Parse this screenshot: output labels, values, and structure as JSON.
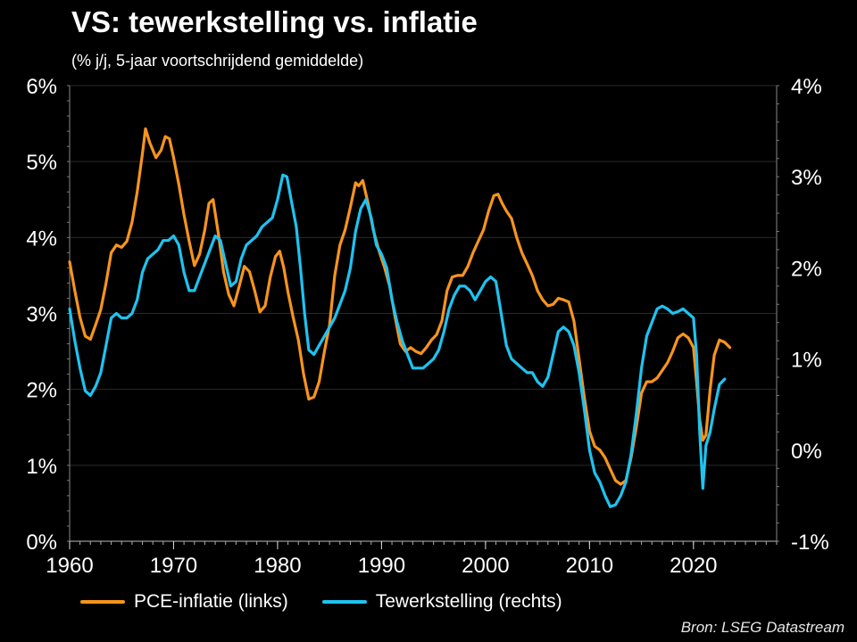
{
  "title": "VS: tewerkstelling vs. inflatie",
  "subtitle": "(% j/j, 5-jaar voortschrijdend gemiddelde)",
  "source": "Bron: LSEG Datastream",
  "chart_data": {
    "type": "line",
    "grid": "horizontal",
    "legend_placement": "bottom",
    "x_range": [
      1960,
      2028
    ],
    "x_ticks": [
      {
        "value": 1960,
        "label": "1960"
      },
      {
        "value": 1970,
        "label": "1970"
      },
      {
        "value": 1980,
        "label": "1980"
      },
      {
        "value": 1990,
        "label": "1990"
      },
      {
        "value": 2000,
        "label": "2000"
      },
      {
        "value": 2010,
        "label": "2010"
      },
      {
        "value": 2020,
        "label": "2020"
      }
    ],
    "y_left": {
      "range": [
        0,
        6
      ],
      "ticks": [
        {
          "value": 0,
          "label": "0%"
        },
        {
          "value": 1,
          "label": "1%"
        },
        {
          "value": 2,
          "label": "2%"
        },
        {
          "value": 3,
          "label": "3%"
        },
        {
          "value": 4,
          "label": "4%"
        },
        {
          "value": 5,
          "label": "5%"
        },
        {
          "value": 6,
          "label": "6%"
        }
      ]
    },
    "y_right": {
      "range": [
        -1,
        4
      ],
      "ticks": [
        {
          "value": -1,
          "label": "-1%"
        },
        {
          "value": 0,
          "label": "0%"
        },
        {
          "value": 1,
          "label": "1%"
        },
        {
          "value": 2,
          "label": "2%"
        },
        {
          "value": 3,
          "label": "3%"
        },
        {
          "value": 4,
          "label": "4%"
        }
      ]
    },
    "series": [
      {
        "name": "PCE-inflatie (links)",
        "axis": "left",
        "color": "#f7941d",
        "points": [
          [
            1960.0,
            3.68
          ],
          [
            1960.5,
            3.3
          ],
          [
            1961.0,
            2.95
          ],
          [
            1961.5,
            2.7
          ],
          [
            1962.0,
            2.66
          ],
          [
            1962.5,
            2.85
          ],
          [
            1963.0,
            3.05
          ],
          [
            1963.5,
            3.4
          ],
          [
            1964.0,
            3.8
          ],
          [
            1964.5,
            3.9
          ],
          [
            1965.0,
            3.87
          ],
          [
            1965.5,
            3.95
          ],
          [
            1966.0,
            4.2
          ],
          [
            1966.5,
            4.6
          ],
          [
            1967.0,
            5.1
          ],
          [
            1967.3,
            5.43
          ],
          [
            1967.7,
            5.25
          ],
          [
            1968.3,
            5.05
          ],
          [
            1968.8,
            5.15
          ],
          [
            1969.2,
            5.33
          ],
          [
            1969.6,
            5.3
          ],
          [
            1970.0,
            5.05
          ],
          [
            1970.5,
            4.7
          ],
          [
            1971.0,
            4.3
          ],
          [
            1971.5,
            3.95
          ],
          [
            1972.0,
            3.63
          ],
          [
            1972.5,
            3.78
          ],
          [
            1973.0,
            4.1
          ],
          [
            1973.4,
            4.45
          ],
          [
            1973.8,
            4.5
          ],
          [
            1974.3,
            4.05
          ],
          [
            1974.8,
            3.55
          ],
          [
            1975.3,
            3.25
          ],
          [
            1975.8,
            3.1
          ],
          [
            1976.3,
            3.35
          ],
          [
            1976.8,
            3.62
          ],
          [
            1977.3,
            3.55
          ],
          [
            1977.8,
            3.3
          ],
          [
            1978.3,
            3.02
          ],
          [
            1978.8,
            3.1
          ],
          [
            1979.3,
            3.48
          ],
          [
            1979.8,
            3.75
          ],
          [
            1980.2,
            3.82
          ],
          [
            1980.6,
            3.6
          ],
          [
            1981.0,
            3.28
          ],
          [
            1981.5,
            2.95
          ],
          [
            1982.0,
            2.65
          ],
          [
            1982.5,
            2.2
          ],
          [
            1983.0,
            1.87
          ],
          [
            1983.5,
            1.9
          ],
          [
            1984.0,
            2.1
          ],
          [
            1984.5,
            2.5
          ],
          [
            1985.0,
            2.85
          ],
          [
            1985.5,
            3.5
          ],
          [
            1986.0,
            3.9
          ],
          [
            1986.5,
            4.1
          ],
          [
            1987.0,
            4.4
          ],
          [
            1987.5,
            4.72
          ],
          [
            1987.8,
            4.68
          ],
          [
            1988.2,
            4.75
          ],
          [
            1988.7,
            4.45
          ],
          [
            1989.2,
            4.1
          ],
          [
            1989.7,
            3.85
          ],
          [
            1990.3,
            3.6
          ],
          [
            1990.8,
            3.35
          ],
          [
            1991.3,
            2.95
          ],
          [
            1991.8,
            2.6
          ],
          [
            1992.3,
            2.5
          ],
          [
            1992.8,
            2.55
          ],
          [
            1993.3,
            2.5
          ],
          [
            1993.8,
            2.47
          ],
          [
            1994.3,
            2.55
          ],
          [
            1994.8,
            2.65
          ],
          [
            1995.3,
            2.72
          ],
          [
            1995.8,
            2.9
          ],
          [
            1996.3,
            3.3
          ],
          [
            1996.8,
            3.48
          ],
          [
            1997.3,
            3.5
          ],
          [
            1997.8,
            3.5
          ],
          [
            1998.3,
            3.62
          ],
          [
            1998.8,
            3.8
          ],
          [
            1999.3,
            3.95
          ],
          [
            1999.8,
            4.1
          ],
          [
            2000.3,
            4.35
          ],
          [
            2000.8,
            4.55
          ],
          [
            2001.2,
            4.57
          ],
          [
            2001.6,
            4.45
          ],
          [
            2002.0,
            4.35
          ],
          [
            2002.5,
            4.25
          ],
          [
            2003.0,
            4.0
          ],
          [
            2003.5,
            3.8
          ],
          [
            2004.0,
            3.65
          ],
          [
            2004.5,
            3.5
          ],
          [
            2005.0,
            3.3
          ],
          [
            2005.5,
            3.18
          ],
          [
            2006.0,
            3.1
          ],
          [
            2006.5,
            3.12
          ],
          [
            2007.0,
            3.2
          ],
          [
            2007.5,
            3.18
          ],
          [
            2008.0,
            3.15
          ],
          [
            2008.5,
            2.9
          ],
          [
            2009.0,
            2.4
          ],
          [
            2009.5,
            1.9
          ],
          [
            2010.0,
            1.45
          ],
          [
            2010.5,
            1.25
          ],
          [
            2011.0,
            1.2
          ],
          [
            2011.5,
            1.1
          ],
          [
            2012.0,
            0.95
          ],
          [
            2012.5,
            0.8
          ],
          [
            2013.0,
            0.75
          ],
          [
            2013.5,
            0.8
          ],
          [
            2014.0,
            1.1
          ],
          [
            2014.5,
            1.5
          ],
          [
            2015.0,
            1.95
          ],
          [
            2015.5,
            2.1
          ],
          [
            2016.0,
            2.1
          ],
          [
            2016.5,
            2.15
          ],
          [
            2017.0,
            2.25
          ],
          [
            2017.5,
            2.35
          ],
          [
            2018.0,
            2.5
          ],
          [
            2018.5,
            2.68
          ],
          [
            2019.0,
            2.73
          ],
          [
            2019.5,
            2.68
          ],
          [
            2020.0,
            2.55
          ],
          [
            2020.3,
            2.1
          ],
          [
            2020.6,
            1.6
          ],
          [
            2020.9,
            1.33
          ],
          [
            2021.2,
            1.4
          ],
          [
            2021.6,
            2.0
          ],
          [
            2022.0,
            2.45
          ],
          [
            2022.5,
            2.65
          ],
          [
            2023.0,
            2.62
          ],
          [
            2023.5,
            2.55
          ]
        ]
      },
      {
        "name": "Tewerkstelling (rechts)",
        "axis": "right",
        "color": "#1ec3f0",
        "points": [
          [
            1960.0,
            1.55
          ],
          [
            1960.5,
            1.2
          ],
          [
            1961.0,
            0.9
          ],
          [
            1961.5,
            0.65
          ],
          [
            1962.0,
            0.6
          ],
          [
            1962.5,
            0.7
          ],
          [
            1963.0,
            0.85
          ],
          [
            1963.5,
            1.15
          ],
          [
            1964.0,
            1.45
          ],
          [
            1964.5,
            1.5
          ],
          [
            1965.0,
            1.45
          ],
          [
            1965.5,
            1.45
          ],
          [
            1966.0,
            1.5
          ],
          [
            1966.5,
            1.65
          ],
          [
            1967.0,
            1.95
          ],
          [
            1967.5,
            2.1
          ],
          [
            1968.0,
            2.15
          ],
          [
            1968.5,
            2.2
          ],
          [
            1969.0,
            2.3
          ],
          [
            1969.5,
            2.3
          ],
          [
            1970.0,
            2.35
          ],
          [
            1970.5,
            2.25
          ],
          [
            1971.0,
            1.95
          ],
          [
            1971.5,
            1.75
          ],
          [
            1972.0,
            1.75
          ],
          [
            1972.5,
            1.9
          ],
          [
            1973.0,
            2.05
          ],
          [
            1973.5,
            2.2
          ],
          [
            1974.0,
            2.35
          ],
          [
            1974.5,
            2.3
          ],
          [
            1975.0,
            2.05
          ],
          [
            1975.5,
            1.8
          ],
          [
            1976.0,
            1.85
          ],
          [
            1976.5,
            2.1
          ],
          [
            1977.0,
            2.25
          ],
          [
            1977.5,
            2.3
          ],
          [
            1978.0,
            2.35
          ],
          [
            1978.5,
            2.45
          ],
          [
            1979.0,
            2.5
          ],
          [
            1979.5,
            2.55
          ],
          [
            1980.0,
            2.75
          ],
          [
            1980.5,
            3.02
          ],
          [
            1980.9,
            3.0
          ],
          [
            1981.3,
            2.75
          ],
          [
            1981.8,
            2.45
          ],
          [
            1982.2,
            2.0
          ],
          [
            1982.6,
            1.5
          ],
          [
            1983.0,
            1.1
          ],
          [
            1983.5,
            1.05
          ],
          [
            1984.0,
            1.15
          ],
          [
            1984.5,
            1.25
          ],
          [
            1985.0,
            1.35
          ],
          [
            1985.5,
            1.45
          ],
          [
            1986.0,
            1.6
          ],
          [
            1986.5,
            1.75
          ],
          [
            1987.0,
            2.0
          ],
          [
            1987.5,
            2.4
          ],
          [
            1988.0,
            2.65
          ],
          [
            1988.5,
            2.75
          ],
          [
            1989.0,
            2.55
          ],
          [
            1989.5,
            2.25
          ],
          [
            1990.0,
            2.15
          ],
          [
            1990.5,
            2.0
          ],
          [
            1991.0,
            1.65
          ],
          [
            1991.5,
            1.4
          ],
          [
            1992.0,
            1.2
          ],
          [
            1992.5,
            1.05
          ],
          [
            1993.0,
            0.9
          ],
          [
            1993.5,
            0.9
          ],
          [
            1994.0,
            0.9
          ],
          [
            1994.5,
            0.95
          ],
          [
            1995.0,
            1.0
          ],
          [
            1995.5,
            1.1
          ],
          [
            1996.0,
            1.3
          ],
          [
            1996.5,
            1.55
          ],
          [
            1997.0,
            1.7
          ],
          [
            1997.5,
            1.8
          ],
          [
            1998.0,
            1.8
          ],
          [
            1998.5,
            1.75
          ],
          [
            1999.0,
            1.65
          ],
          [
            1999.5,
            1.75
          ],
          [
            2000.0,
            1.85
          ],
          [
            2000.5,
            1.9
          ],
          [
            2001.0,
            1.85
          ],
          [
            2001.5,
            1.5
          ],
          [
            2002.0,
            1.15
          ],
          [
            2002.5,
            1.0
          ],
          [
            2003.0,
            0.95
          ],
          [
            2003.5,
            0.9
          ],
          [
            2004.0,
            0.85
          ],
          [
            2004.5,
            0.85
          ],
          [
            2005.0,
            0.75
          ],
          [
            2005.5,
            0.7
          ],
          [
            2006.0,
            0.8
          ],
          [
            2006.5,
            1.05
          ],
          [
            2007.0,
            1.3
          ],
          [
            2007.5,
            1.35
          ],
          [
            2008.0,
            1.3
          ],
          [
            2008.5,
            1.15
          ],
          [
            2009.0,
            0.85
          ],
          [
            2009.5,
            0.45
          ],
          [
            2010.0,
            0.0
          ],
          [
            2010.5,
            -0.25
          ],
          [
            2011.0,
            -0.35
          ],
          [
            2011.5,
            -0.5
          ],
          [
            2012.0,
            -0.62
          ],
          [
            2012.5,
            -0.6
          ],
          [
            2013.0,
            -0.5
          ],
          [
            2013.5,
            -0.35
          ],
          [
            2014.0,
            -0.05
          ],
          [
            2014.5,
            0.4
          ],
          [
            2015.0,
            0.9
          ],
          [
            2015.5,
            1.25
          ],
          [
            2016.0,
            1.4
          ],
          [
            2016.5,
            1.55
          ],
          [
            2017.0,
            1.58
          ],
          [
            2017.5,
            1.55
          ],
          [
            2018.0,
            1.5
          ],
          [
            2018.5,
            1.52
          ],
          [
            2019.0,
            1.55
          ],
          [
            2019.5,
            1.5
          ],
          [
            2020.0,
            1.45
          ],
          [
            2020.3,
            1.05
          ],
          [
            2020.6,
            0.2
          ],
          [
            2020.9,
            -0.42
          ],
          [
            2021.2,
            0.05
          ],
          [
            2021.6,
            0.2
          ],
          [
            2022.0,
            0.45
          ],
          [
            2022.5,
            0.72
          ],
          [
            2023.0,
            0.78
          ]
        ]
      }
    ]
  }
}
